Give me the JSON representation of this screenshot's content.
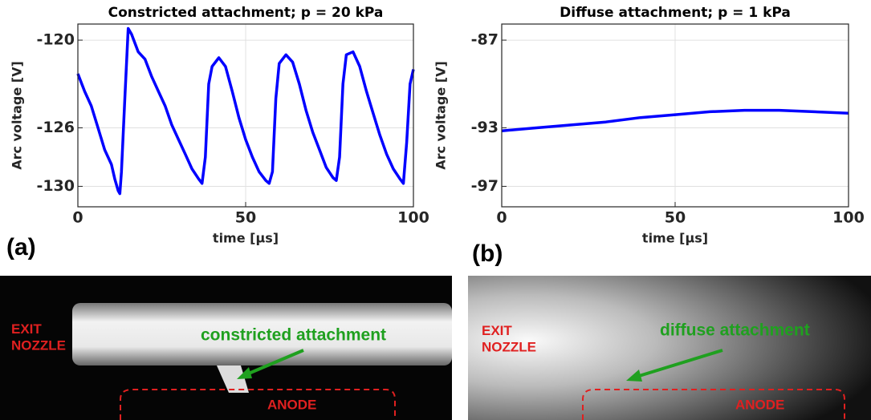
{
  "chart_data": [
    {
      "type": "line",
      "title": "Constricted attachment; p = 20 kPa",
      "xlabel": "time   [μs]",
      "ylabel": "Arc voltage   [V]",
      "x": [
        0,
        2,
        4,
        6,
        8,
        10,
        11,
        12,
        12.5,
        13,
        14,
        15,
        16,
        18,
        20,
        22,
        24,
        26,
        28,
        30,
        32,
        34,
        36,
        37,
        38,
        39,
        40,
        42,
        44,
        46,
        48,
        50,
        52,
        54,
        56,
        57,
        58,
        59,
        60,
        62,
        64,
        66,
        68,
        70,
        72,
        74,
        76,
        77,
        78,
        79,
        80,
        82,
        84,
        86,
        88,
        90,
        92,
        94,
        96,
        97,
        98,
        99,
        100
      ],
      "series": [
        {
          "color": "#0000ff",
          "values": [
            -122.3,
            -123.5,
            -124.5,
            -126,
            -127.5,
            -128.5,
            -129.5,
            -130.3,
            -130.5,
            -129,
            -124,
            -119.2,
            -119.6,
            -120.8,
            -121.3,
            -122.5,
            -123.5,
            -124.5,
            -125.8,
            -126.8,
            -127.8,
            -128.8,
            -129.5,
            -129.8,
            -128,
            -123,
            -121.8,
            -121.2,
            -121.8,
            -123.5,
            -125.3,
            -126.8,
            -128,
            -129,
            -129.6,
            -129.8,
            -129,
            -124,
            -121.6,
            -121,
            -121.5,
            -123,
            -124.8,
            -126.3,
            -127.5,
            -128.7,
            -129.4,
            -129.6,
            -128,
            -123,
            -121,
            -120.8,
            -121.8,
            -123.5,
            -125,
            -126.5,
            -127.8,
            -128.8,
            -129.5,
            -129.8,
            -127,
            -123,
            -122
          ]
        }
      ],
      "xlim": [
        0,
        100
      ],
      "xticks": [
        0,
        50,
        100
      ],
      "ylim": [
        -131.4,
        -118.9
      ],
      "yticks": [
        -130,
        -126,
        -120
      ],
      "grid": true
    },
    {
      "type": "line",
      "title": "Diffuse attachment; p = 1 kPa",
      "xlabel": "time   [μs]",
      "ylabel": "Arc voltage   [V]",
      "x": [
        0,
        10,
        20,
        30,
        40,
        50,
        60,
        70,
        80,
        90,
        100
      ],
      "series": [
        {
          "color": "#0000ff",
          "values": [
            -93.2,
            -93.0,
            -92.8,
            -92.6,
            -92.3,
            -92.1,
            -91.9,
            -91.8,
            -91.8,
            -91.9,
            -92.0
          ]
        }
      ],
      "xlim": [
        0,
        100
      ],
      "xticks": [
        0,
        50,
        100
      ],
      "ylim": [
        -98.4,
        -85.9
      ],
      "yticks": [
        -97,
        -93,
        -87
      ],
      "grid": true
    }
  ],
  "photos": [
    {
      "panel": "(a)",
      "labels": [
        "EXIT\nNOZZLE",
        "constricted attachment",
        "ANODE"
      ]
    },
    {
      "panel": "(b)",
      "labels": [
        "EXIT\nNOZZLE",
        "diffuse attachment",
        "ANODE"
      ]
    }
  ]
}
